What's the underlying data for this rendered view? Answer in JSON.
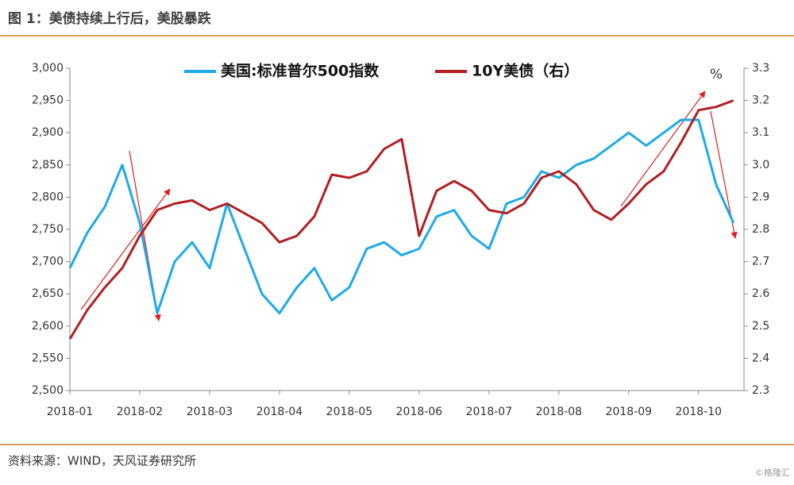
{
  "chart_data": {
    "type": "line",
    "title": "图 1：美债持续上行后，美股暴跌",
    "source": "资料来源：WIND，天风证券研究所",
    "watermark": "©格隆汇",
    "y2_label": "%",
    "categories": [
      "2018-01",
      null,
      null,
      null,
      "2018-02",
      null,
      null,
      null,
      "2018-03",
      null,
      null,
      null,
      "2018-04",
      null,
      null,
      null,
      "2018-05",
      null,
      null,
      null,
      "2018-06",
      null,
      null,
      null,
      "2018-07",
      null,
      null,
      null,
      "2018-08",
      null,
      null,
      null,
      "2018-09",
      null,
      null,
      null,
      "2018-10",
      null,
      null
    ],
    "series": [
      {
        "name": "美国:标准普尔500指数",
        "color": "#1eaae7",
        "values": [
          2690,
          2745,
          2785,
          2850,
          2760,
          2620,
          2700,
          2730,
          2690,
          2790,
          2720,
          2650,
          2620,
          2660,
          2690,
          2640,
          2660,
          2720,
          2730,
          2710,
          2720,
          2770,
          2780,
          2740,
          2720,
          2790,
          2800,
          2840,
          2830,
          2850,
          2860,
          2880,
          2900,
          2880,
          2900,
          2920,
          2920,
          2820,
          2760
        ]
      },
      {
        "name": "10Y美债（右）",
        "color": "#b11e23",
        "axis": "y2",
        "values": [
          2.46,
          2.55,
          2.62,
          2.68,
          2.78,
          2.86,
          2.88,
          2.89,
          2.86,
          2.88,
          2.85,
          2.82,
          2.76,
          2.78,
          2.84,
          2.97,
          2.96,
          2.98,
          3.05,
          3.08,
          2.78,
          2.92,
          2.95,
          2.92,
          2.86,
          2.85,
          2.88,
          2.96,
          2.98,
          2.94,
          2.86,
          2.83,
          2.88,
          2.94,
          2.98,
          3.07,
          3.17,
          3.18,
          3.2
        ]
      }
    ],
    "ylim": [
      2500,
      3000
    ],
    "yticks": [
      {
        "value": 2500,
        "label": "2,500"
      },
      {
        "value": 2550,
        "label": "2,550"
      },
      {
        "value": 2600,
        "label": "2,600"
      },
      {
        "value": 2650,
        "label": "2,650"
      },
      {
        "value": 2700,
        "label": "2,700"
      },
      {
        "value": 2750,
        "label": "2,750"
      },
      {
        "value": 2800,
        "label": "2,800"
      },
      {
        "value": 2850,
        "label": "2,850"
      },
      {
        "value": 2900,
        "label": "2,900"
      },
      {
        "value": 2950,
        "label": "2,950"
      },
      {
        "value": 3000,
        "label": "3,000"
      }
    ],
    "y2lim": [
      2.3,
      3.3
    ],
    "y2ticks": [
      2.3,
      2.4,
      2.5,
      2.6,
      2.7,
      2.8,
      2.9,
      {
        "value": 3,
        "label": "3.0"
      },
      3.1,
      3.2,
      3.3
    ],
    "grid": false
  }
}
